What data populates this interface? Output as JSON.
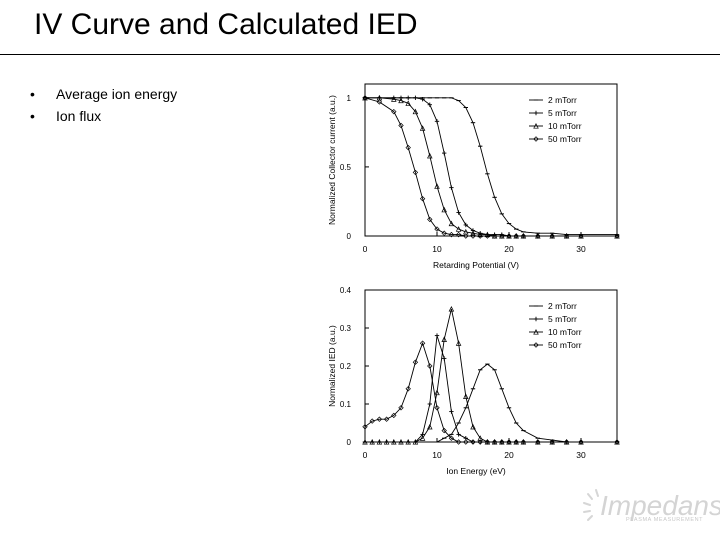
{
  "page": {
    "title": "IV Curve and Calculated IED",
    "bullets": [
      "Average ion energy",
      "Ion flux"
    ]
  },
  "logo": {
    "word": "Impedans",
    "tagline": "PLASMA MEASUREMENT"
  },
  "colors": {
    "line": "#000000",
    "text": "#000000",
    "rule": "#000000"
  },
  "chart_data": [
    {
      "type": "line",
      "title": "",
      "xlabel": "Retarding Potential (V)",
      "ylabel": "Normalized Collector current (a.u.)",
      "xlim": [
        0,
        35
      ],
      "ylim": [
        0,
        1.1
      ],
      "xticks": [
        "0",
        "10",
        "20",
        "30"
      ],
      "yticks": [
        "0",
        "0.5",
        "1"
      ],
      "legend": "top-right",
      "x": [
        0,
        2,
        4,
        5,
        6,
        7,
        8,
        9,
        10,
        11,
        12,
        13,
        14,
        15,
        16,
        17,
        18,
        19,
        20,
        21,
        22,
        24,
        26,
        28,
        30,
        35
      ],
      "series": [
        {
          "name": "2 mTorr",
          "marker": "dash",
          "values": [
            1,
            1,
            1,
            1,
            1,
            1,
            1,
            1,
            1,
            1,
            1,
            0.98,
            0.93,
            0.82,
            0.65,
            0.45,
            0.28,
            0.16,
            0.09,
            0.05,
            0.03,
            0.02,
            0.02,
            0.01,
            0.01,
            0.01
          ]
        },
        {
          "name": "5 mTorr",
          "marker": "plus",
          "values": [
            1,
            1,
            1,
            1,
            1,
            1,
            0.99,
            0.95,
            0.83,
            0.6,
            0.35,
            0.17,
            0.08,
            0.04,
            0.02,
            0.01,
            0.01,
            0.01,
            0,
            0,
            0,
            0,
            0,
            0,
            0,
            0
          ]
        },
        {
          "name": "10 mTorr",
          "marker": "triangle",
          "values": [
            1,
            1,
            0.99,
            0.98,
            0.96,
            0.9,
            0.78,
            0.58,
            0.36,
            0.19,
            0.09,
            0.05,
            0.03,
            0.02,
            0.01,
            0.01,
            0,
            0,
            0,
            0,
            0,
            0,
            0,
            0,
            0,
            0
          ]
        },
        {
          "name": "50 mTorr",
          "marker": "diamond",
          "values": [
            1,
            0.97,
            0.9,
            0.8,
            0.64,
            0.46,
            0.27,
            0.12,
            0.05,
            0.02,
            0.01,
            0.01,
            0,
            0,
            0,
            0,
            0,
            0,
            0,
            0,
            0,
            0,
            0,
            0,
            0,
            0
          ]
        }
      ]
    },
    {
      "type": "line",
      "title": "",
      "xlabel": "Ion Energy (eV)",
      "ylabel": "Normalized IED (a.u.)",
      "xlim": [
        0,
        35
      ],
      "ylim": [
        0,
        0.4
      ],
      "xticks": [
        "0",
        "10",
        "20",
        "30"
      ],
      "yticks": [
        "0",
        "0.1",
        "0.2",
        "0.3",
        "0.4"
      ],
      "legend": "top-right",
      "x": [
        0,
        1,
        2,
        3,
        4,
        5,
        6,
        7,
        8,
        9,
        10,
        11,
        12,
        13,
        14,
        15,
        16,
        17,
        18,
        19,
        20,
        21,
        22,
        24,
        26,
        28,
        30,
        35
      ],
      "series": [
        {
          "name": "2 mTorr",
          "marker": "dash",
          "values": [
            0,
            0,
            0,
            0,
            0,
            0,
            0,
            0,
            0,
            0,
            0,
            0.01,
            0.02,
            0.05,
            0.09,
            0.14,
            0.19,
            0.205,
            0.19,
            0.14,
            0.09,
            0.05,
            0.03,
            0.01,
            0.005,
            0,
            0,
            0
          ]
        },
        {
          "name": "5 mTorr",
          "marker": "plus",
          "values": [
            0,
            0,
            0,
            0,
            0,
            0,
            0,
            0,
            0.02,
            0.1,
            0.28,
            0.22,
            0.08,
            0.02,
            0.01,
            0,
            0,
            0,
            0,
            0,
            0,
            0,
            0,
            0,
            0,
            0,
            0,
            0
          ]
        },
        {
          "name": "10 mTorr",
          "marker": "triangle",
          "values": [
            0,
            0,
            0,
            0,
            0,
            0,
            0,
            0,
            0.01,
            0.04,
            0.13,
            0.27,
            0.35,
            0.26,
            0.12,
            0.04,
            0.01,
            0,
            0,
            0,
            0,
            0,
            0,
            0,
            0,
            0,
            0,
            0
          ]
        },
        {
          "name": "50 mTorr",
          "marker": "diamond",
          "values": [
            0.04,
            0.055,
            0.06,
            0.06,
            0.07,
            0.09,
            0.14,
            0.21,
            0.26,
            0.2,
            0.09,
            0.03,
            0.01,
            0,
            0,
            0,
            0,
            0,
            0,
            0,
            0,
            0,
            0,
            0,
            0,
            0,
            0,
            0
          ]
        }
      ]
    }
  ]
}
